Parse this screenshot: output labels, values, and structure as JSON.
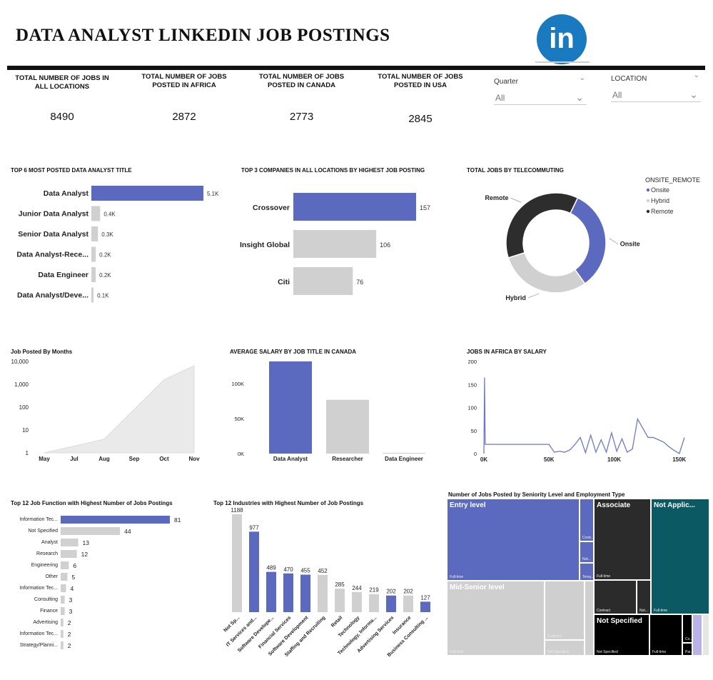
{
  "header": {
    "title": "DATA ANALYST LINKEDIN JOB POSTINGS",
    "logo_text": "in"
  },
  "kpis": [
    {
      "label": "TOTAL NUMBER OF JOBS IN ALL LOCATIONS",
      "value": "8490"
    },
    {
      "label": "TOTAL NUMBER OF JOBS POSTED IN AFRICA",
      "value": "2872"
    },
    {
      "label": "TOTAL NUMBER OF JOBS POSTED IN CANADA",
      "value": "2773"
    },
    {
      "label": "TOTAL NUMBER OF JOBS POSTED IN USA",
      "value": "2845"
    }
  ],
  "slicers": {
    "quarter": {
      "label": "Quarter",
      "value": "All"
    },
    "location": {
      "label": "LOCATION",
      "value": "All"
    }
  },
  "colors": {
    "accent": "#5b6abf",
    "grey": "#d0d0d0",
    "dark": "#2d2d2d",
    "teal": "#0b5962",
    "logo": "#1a7abf"
  },
  "chart_data": [
    {
      "id": "top_titles",
      "type": "bar",
      "orientation": "horizontal",
      "title": "TOP 6 MOST POSTED DATA ANALYST TITLE",
      "categories": [
        "Data Analyst",
        "Junior Data Analyst",
        "Senior Data Analyst",
        "Data Analyst-Rece...",
        "Data Engineer",
        "Data Analyst/Deve..."
      ],
      "values": [
        5100,
        400,
        300,
        200,
        200,
        100
      ],
      "labels": [
        "5.1K",
        "0.4K",
        "0.3K",
        "0.2K",
        "0.2K",
        "0.1K"
      ]
    },
    {
      "id": "top_companies",
      "type": "bar",
      "orientation": "horizontal",
      "title": "TOP 3 COMPANIES IN ALL LOCATIONS BY HIGHEST JOB POSTING",
      "categories": [
        "Crossover",
        "Insight Global",
        "Citi"
      ],
      "values": [
        157,
        106,
        76
      ]
    },
    {
      "id": "telecommuting",
      "type": "pie",
      "donut": true,
      "title": "TOTAL JOBS BY TELECOMMUTING",
      "legend_title": "ONSITE_REMOTE",
      "legend_position": "right",
      "categories": [
        "Onsite",
        "Hybrid",
        "Remote"
      ],
      "values": [
        33,
        30,
        37
      ]
    },
    {
      "id": "by_month",
      "type": "area",
      "yscale": "log",
      "title": "Job Posted By Months",
      "categories": [
        "May",
        "Jul",
        "Aug",
        "Sep",
        "Oct",
        "Nov"
      ],
      "values": [
        1,
        2,
        4,
        80,
        1600,
        6500
      ],
      "yticks": [
        "1",
        "10",
        "100",
        "1,000",
        "10,000"
      ]
    },
    {
      "id": "salary_canada",
      "type": "bar",
      "title": "AVERAGE SALARY BY JOB TITLE IN CANADA",
      "categories": [
        "Data Analyst",
        "Researcher",
        "Data Engineer"
      ],
      "values": [
        132000,
        77000,
        500
      ],
      "yticks": [
        "0K",
        "50K",
        "100K"
      ],
      "ylim": [
        0,
        135000
      ]
    },
    {
      "id": "africa_salary",
      "type": "line",
      "title": "JOBS IN AFRICA BY SALARY",
      "xlim": [
        0,
        160000
      ],
      "ylim": [
        0,
        200
      ],
      "yticks": [
        "0",
        "50",
        "100",
        "150",
        "200"
      ],
      "xticks": [
        "0K",
        "50K",
        "100K",
        "150K"
      ],
      "x": [
        0,
        500,
        1000,
        50000,
        54000,
        58000,
        62000,
        66000,
        70000,
        74000,
        78000,
        82000,
        86000,
        90000,
        94000,
        98000,
        102000,
        106000,
        110000,
        114000,
        118000,
        122000,
        126000,
        130000,
        134000,
        138000,
        142000,
        146000,
        150000,
        154000
      ],
      "y": [
        0,
        165,
        20,
        20,
        3,
        5,
        3,
        8,
        20,
        35,
        2,
        40,
        3,
        30,
        3,
        45,
        5,
        32,
        3,
        10,
        75,
        55,
        35,
        35,
        30,
        25,
        15,
        7,
        0,
        35
      ]
    },
    {
      "id": "job_function",
      "type": "bar",
      "orientation": "horizontal",
      "title": "Top 12 Job Function with Highest Number of Jobs Postings",
      "categories": [
        "Information Tec...",
        "Not Specified",
        "Analyst",
        "Research",
        "Engineering",
        "Other",
        "Information Tec...",
        "Consulting",
        "Finance",
        "Advertising",
        "Information Tec...",
        "Strategy/Planni..."
      ],
      "values": [
        81,
        44,
        13,
        12,
        6,
        5,
        4,
        3,
        3,
        2,
        2,
        2
      ]
    },
    {
      "id": "industries",
      "type": "bar",
      "title": "Top 12 Industries with Highest Number of Job Postings",
      "categories": [
        "Not Sp...",
        "IT Services and...",
        "Software Develope...",
        "Financial Services",
        "Software Development",
        "Staffing and Recruiting",
        "Retail",
        "Technology",
        "Technology, Informa...",
        "Advertising Services",
        "Insurance",
        "Business Consulting ..."
      ],
      "values": [
        1188,
        977,
        489,
        470,
        455,
        452,
        285,
        244,
        219,
        202,
        202,
        127
      ]
    },
    {
      "id": "seniority",
      "type": "treemap",
      "title": "Number of Jobs Posted by Seniority Level and Employment Type",
      "groups": [
        {
          "name": "Entry level",
          "sub": [
            "Full-time",
            "Contr...",
            "Not...",
            "Temp..."
          ]
        },
        {
          "name": "Mid-Senior level",
          "sub": [
            "Full-time",
            "Contract",
            "Not Specified"
          ]
        },
        {
          "name": "Associate",
          "sub": [
            "Full-time",
            "Contract",
            "Not..."
          ]
        },
        {
          "name": "Not Applic...",
          "sub": [
            "Full-time"
          ]
        },
        {
          "name": "Not Specified",
          "sub": [
            "Not Specified",
            "Full-time",
            "Co...",
            "Par..."
          ]
        }
      ]
    }
  ]
}
